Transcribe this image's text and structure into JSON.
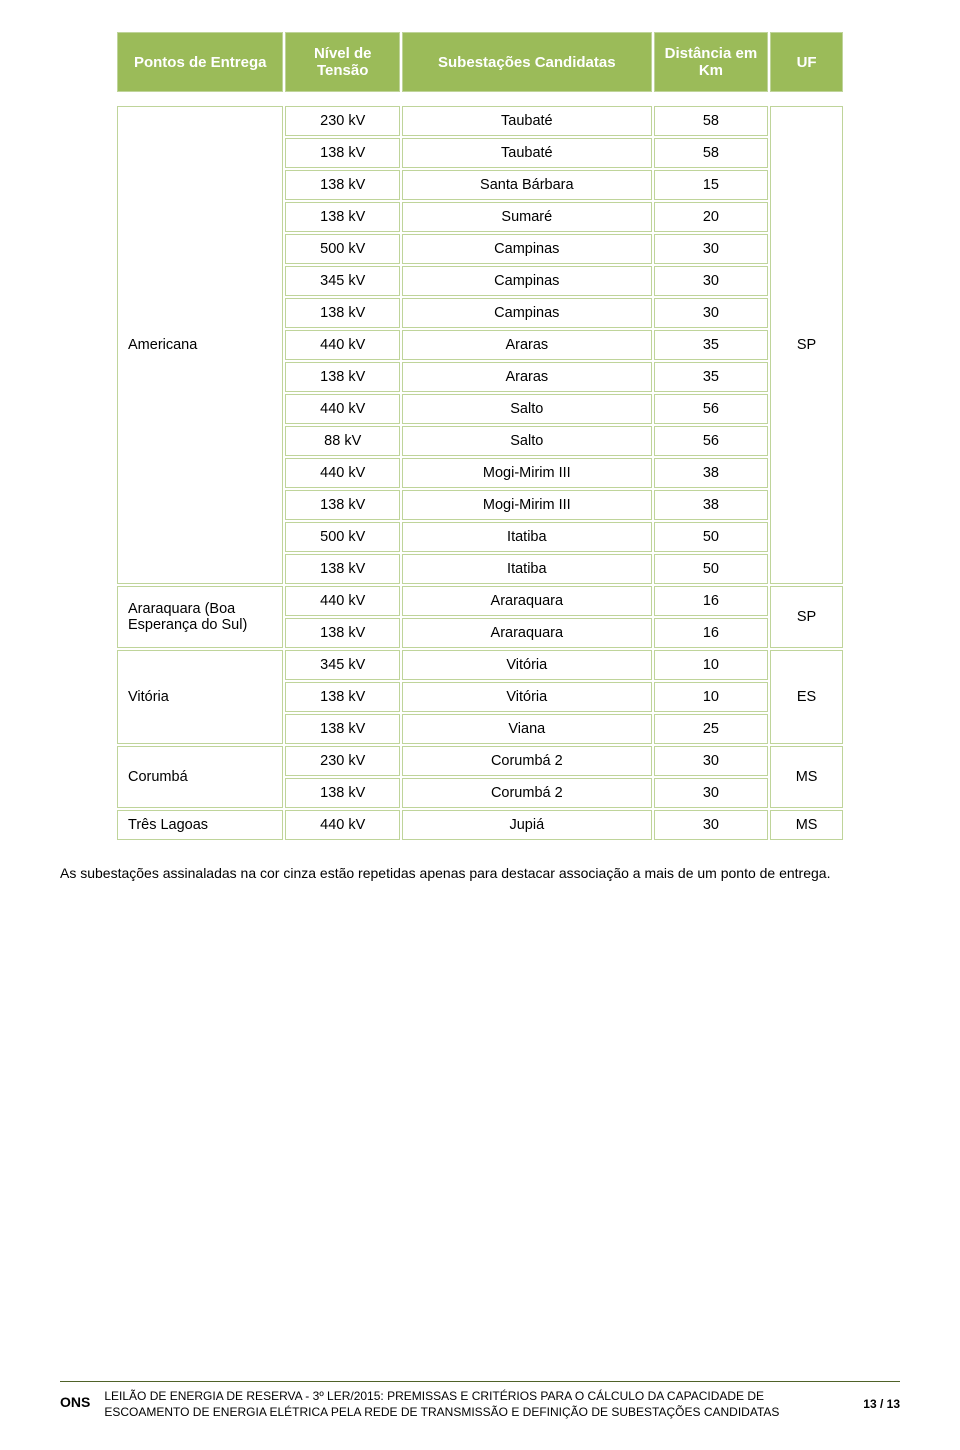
{
  "header_bg": "#9bbb59",
  "header_text_color": "#ffffff",
  "cell_border_color": "#bfd49a",
  "footer_rule_color": "#4f6228",
  "columns": {
    "pontos": "Pontos de Entrega",
    "nivel": "Nível de Tensão",
    "sub": "Subestações Candidatas",
    "dist": "Distância em Km",
    "uf": "UF"
  },
  "groups": [
    {
      "pontos": "Americana",
      "uf": "SP",
      "rows": [
        {
          "nivel": "230 kV",
          "sub": "Taubaté",
          "dist": "58"
        },
        {
          "nivel": "138 kV",
          "sub": "Taubaté",
          "dist": "58"
        },
        {
          "nivel": "138 kV",
          "sub": "Santa Bárbara",
          "dist": "15"
        },
        {
          "nivel": "138 kV",
          "sub": "Sumaré",
          "dist": "20"
        },
        {
          "nivel": "500 kV",
          "sub": "Campinas",
          "dist": "30"
        },
        {
          "nivel": "345 kV",
          "sub": "Campinas",
          "dist": "30"
        },
        {
          "nivel": "138 kV",
          "sub": "Campinas",
          "dist": "30"
        },
        {
          "nivel": "440 kV",
          "sub": "Araras",
          "dist": "35"
        },
        {
          "nivel": "138 kV",
          "sub": "Araras",
          "dist": "35"
        },
        {
          "nivel": "440 kV",
          "sub": "Salto",
          "dist": "56"
        },
        {
          "nivel": "88 kV",
          "sub": "Salto",
          "dist": "56"
        },
        {
          "nivel": "440 kV",
          "sub": "Mogi-Mirim III",
          "dist": "38"
        },
        {
          "nivel": "138 kV",
          "sub": "Mogi-Mirim III",
          "dist": "38"
        },
        {
          "nivel": "500 kV",
          "sub": "Itatiba",
          "dist": "50"
        },
        {
          "nivel": "138 kV",
          "sub": "Itatiba",
          "dist": "50"
        }
      ]
    },
    {
      "pontos": "Araraquara (Boa Esperança do Sul)",
      "uf": "SP",
      "rows": [
        {
          "nivel": "440 kV",
          "sub": "Araraquara",
          "dist": "16"
        },
        {
          "nivel": "138 kV",
          "sub": "Araraquara",
          "dist": "16"
        }
      ]
    },
    {
      "pontos": "Vitória",
      "uf": "ES",
      "rows": [
        {
          "nivel": "345 kV",
          "sub": "Vitória",
          "dist": "10"
        },
        {
          "nivel": "138 kV",
          "sub": "Vitória",
          "dist": "10"
        },
        {
          "nivel": "138 kV",
          "sub": "Viana",
          "dist": "25"
        }
      ]
    },
    {
      "pontos": "Corumbá",
      "uf": "MS",
      "rows": [
        {
          "nivel": "230 kV",
          "sub": "Corumbá 2",
          "dist": "30"
        },
        {
          "nivel": "138 kV",
          "sub": "Corumbá 2",
          "dist": "30"
        }
      ]
    },
    {
      "pontos": "Três Lagoas",
      "uf": "MS",
      "rows": [
        {
          "nivel": "440 kV",
          "sub": "Jupiá",
          "dist": "30"
        }
      ]
    }
  ],
  "note": "As subestações assinaladas na cor cinza estão repetidas apenas para destacar associação a mais de um ponto de entrega.",
  "footer": {
    "logo": "ONS",
    "text": "LEILÃO DE ENERGIA DE RESERVA - 3º LER/2015: PREMISSAS E CRITÉRIOS PARA O CÁLCULO DA CAPACIDADE DE ESCOAMENTO DE ENERGIA ELÉTRICA PELA REDE DE TRANSMISSÃO E DEFINIÇÃO DE SUBESTAÇÕES CANDIDATAS",
    "page": "13 / 13"
  }
}
